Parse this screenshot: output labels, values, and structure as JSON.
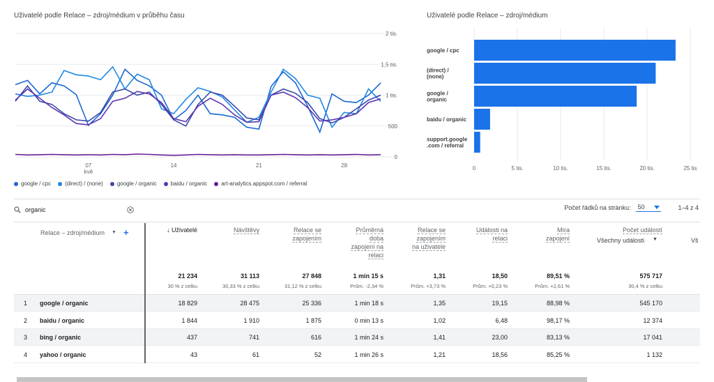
{
  "line_chart": {
    "title": "Uživatelé podle Relace – zdroj/médium v průběhu času",
    "y_ticks": [
      "2 tis.",
      "1,5 tis.",
      "1 tis.",
      "500",
      "0"
    ],
    "x_ticks": [
      "07",
      "14",
      "21",
      "28"
    ],
    "x_month": "kvě",
    "legend": [
      {
        "label": "google / cpc",
        "color": "#1967d2"
      },
      {
        "label": "(direct) / (none)",
        "color": "#1e88e5"
      },
      {
        "label": "google / organic",
        "color": "#3949ab"
      },
      {
        "label": "baidu / organic",
        "color": "#5e35b1"
      },
      {
        "label": "art-analytics.appspot.com / referral",
        "color": "#6a1b9a"
      }
    ]
  },
  "bar_chart": {
    "title": "Uživatelé podle Relace – zdroj/médium",
    "x_ticks": [
      "0",
      "5 tis.",
      "10 tis.",
      "15 tis.",
      "20 tis.",
      "25 tis"
    ],
    "bar_color": "#1a73e8"
  },
  "chart_data": [
    {
      "type": "line",
      "title": "Uživatelé podle Relace – zdroj/médium v průběhu času",
      "x": [
        1,
        2,
        3,
        4,
        5,
        6,
        7,
        8,
        9,
        10,
        11,
        12,
        13,
        14,
        15,
        16,
        17,
        18,
        19,
        20,
        21,
        22,
        23,
        24,
        25,
        26,
        27,
        28,
        29,
        30,
        31
      ],
      "ylim": [
        0,
        2000
      ],
      "series": [
        {
          "name": "google / cpc",
          "values": [
            1170,
            1240,
            1020,
            1200,
            1150,
            1010,
            510,
            700,
            1000,
            1420,
            1240,
            1150,
            1000,
            600,
            750,
            1000,
            700,
            680,
            640,
            480,
            450,
            1140,
            1380,
            1200,
            820,
            400,
            1020,
            900,
            880,
            1000,
            1200
          ]
        },
        {
          "name": "(direct) / (none)",
          "values": [
            1020,
            980,
            1000,
            1050,
            1400,
            1330,
            1310,
            1250,
            1460,
            1100,
            1340,
            1250,
            780,
            700,
            930,
            1120,
            1060,
            970,
            760,
            560,
            640,
            1050,
            1420,
            1270,
            1000,
            950,
            480,
            720,
            700,
            1100,
            900
          ]
        },
        {
          "name": "google / organic",
          "values": [
            900,
            1150,
            900,
            850,
            700,
            600,
            580,
            720,
            1050,
            1100,
            1000,
            1050,
            850,
            600,
            500,
            850,
            1050,
            1000,
            820,
            630,
            600,
            1000,
            1100,
            1030,
            880,
            620,
            550,
            640,
            780,
            920,
            1000
          ]
        },
        {
          "name": "baidu / organic",
          "values": [
            920,
            1100,
            950,
            800,
            680,
            540,
            520,
            620,
            900,
            950,
            1060,
            1020,
            880,
            620,
            570,
            820,
            950,
            850,
            680,
            560,
            570,
            1000,
            1050,
            960,
            800,
            580,
            600,
            640,
            700,
            880,
            940
          ]
        },
        {
          "name": "art-analytics.appspot.com / referral",
          "values": [
            40,
            30,
            35,
            40,
            35,
            30,
            35,
            30,
            40,
            35,
            45,
            40,
            30,
            25,
            30,
            40,
            35,
            30,
            35,
            30,
            30,
            35,
            40,
            35,
            30,
            35,
            30,
            35,
            40,
            30,
            35
          ]
        }
      ]
    },
    {
      "type": "bar",
      "title": "Uživatelé podle Relace – zdroj/médium",
      "categories": [
        "google / cpc",
        "(direct) / (none)",
        "google / organic",
        "baidu / organic",
        "support.google.com / referral"
      ],
      "values": [
        23300,
        21000,
        18800,
        1844,
        700
      ],
      "xlim": [
        0,
        25000
      ]
    }
  ],
  "table": {
    "search_value": "organic",
    "rows_per_page_label": "Počet řádků na stránku:",
    "rows_per_page_value": "50",
    "pagination": "1–4 z 4",
    "dimension_header": "Relace – zdroj/médium",
    "columns": [
      {
        "label": "Uživatelé",
        "total": "21 234",
        "sub": "30 % z celku"
      },
      {
        "label": "Návštěvy",
        "total": "31 113",
        "sub": "30,33 % z celku"
      },
      {
        "label": "Relace se zapojením",
        "total": "27 848",
        "sub": "31,12 % z celku"
      },
      {
        "label": "Průměrná doba zapojení na relaci",
        "total": "1 min 15 s",
        "sub": "Prům. -2,34 %"
      },
      {
        "label": "Relace se zapojením na uživatele",
        "total": "1,31",
        "sub": "Prům. +3,73 %"
      },
      {
        "label": "Události na relaci",
        "total": "18,50",
        "sub": "Prům. +0,23 %"
      },
      {
        "label": "Míra zapojení",
        "total": "89,51 %",
        "sub": "Prům. +2,61 %"
      },
      {
        "label": "Počet událostí",
        "total": "575 717",
        "sub": "30,4 % z celku"
      }
    ],
    "events_filter": "Všechny události",
    "cut_off_header": "Vš",
    "rows": [
      {
        "num": "1",
        "name": "google / organic",
        "vals": [
          "18 829",
          "28 475",
          "25 336",
          "1 min 18 s",
          "1,35",
          "19,15",
          "88,98 %",
          "545 170"
        ]
      },
      {
        "num": "2",
        "name": "baidu / organic",
        "vals": [
          "1 844",
          "1 910",
          "1 875",
          "0 min 13 s",
          "1,02",
          "6,48",
          "98,17 %",
          "12 374"
        ]
      },
      {
        "num": "3",
        "name": "bing / organic",
        "vals": [
          "437",
          "741",
          "616",
          "1 min 24 s",
          "1,41",
          "23,00",
          "83,13 %",
          "17 041"
        ]
      },
      {
        "num": "4",
        "name": "yahoo / organic",
        "vals": [
          "43",
          "61",
          "52",
          "1 min 26 s",
          "1,21",
          "18,56",
          "85,25 %",
          "1 132"
        ]
      }
    ]
  }
}
